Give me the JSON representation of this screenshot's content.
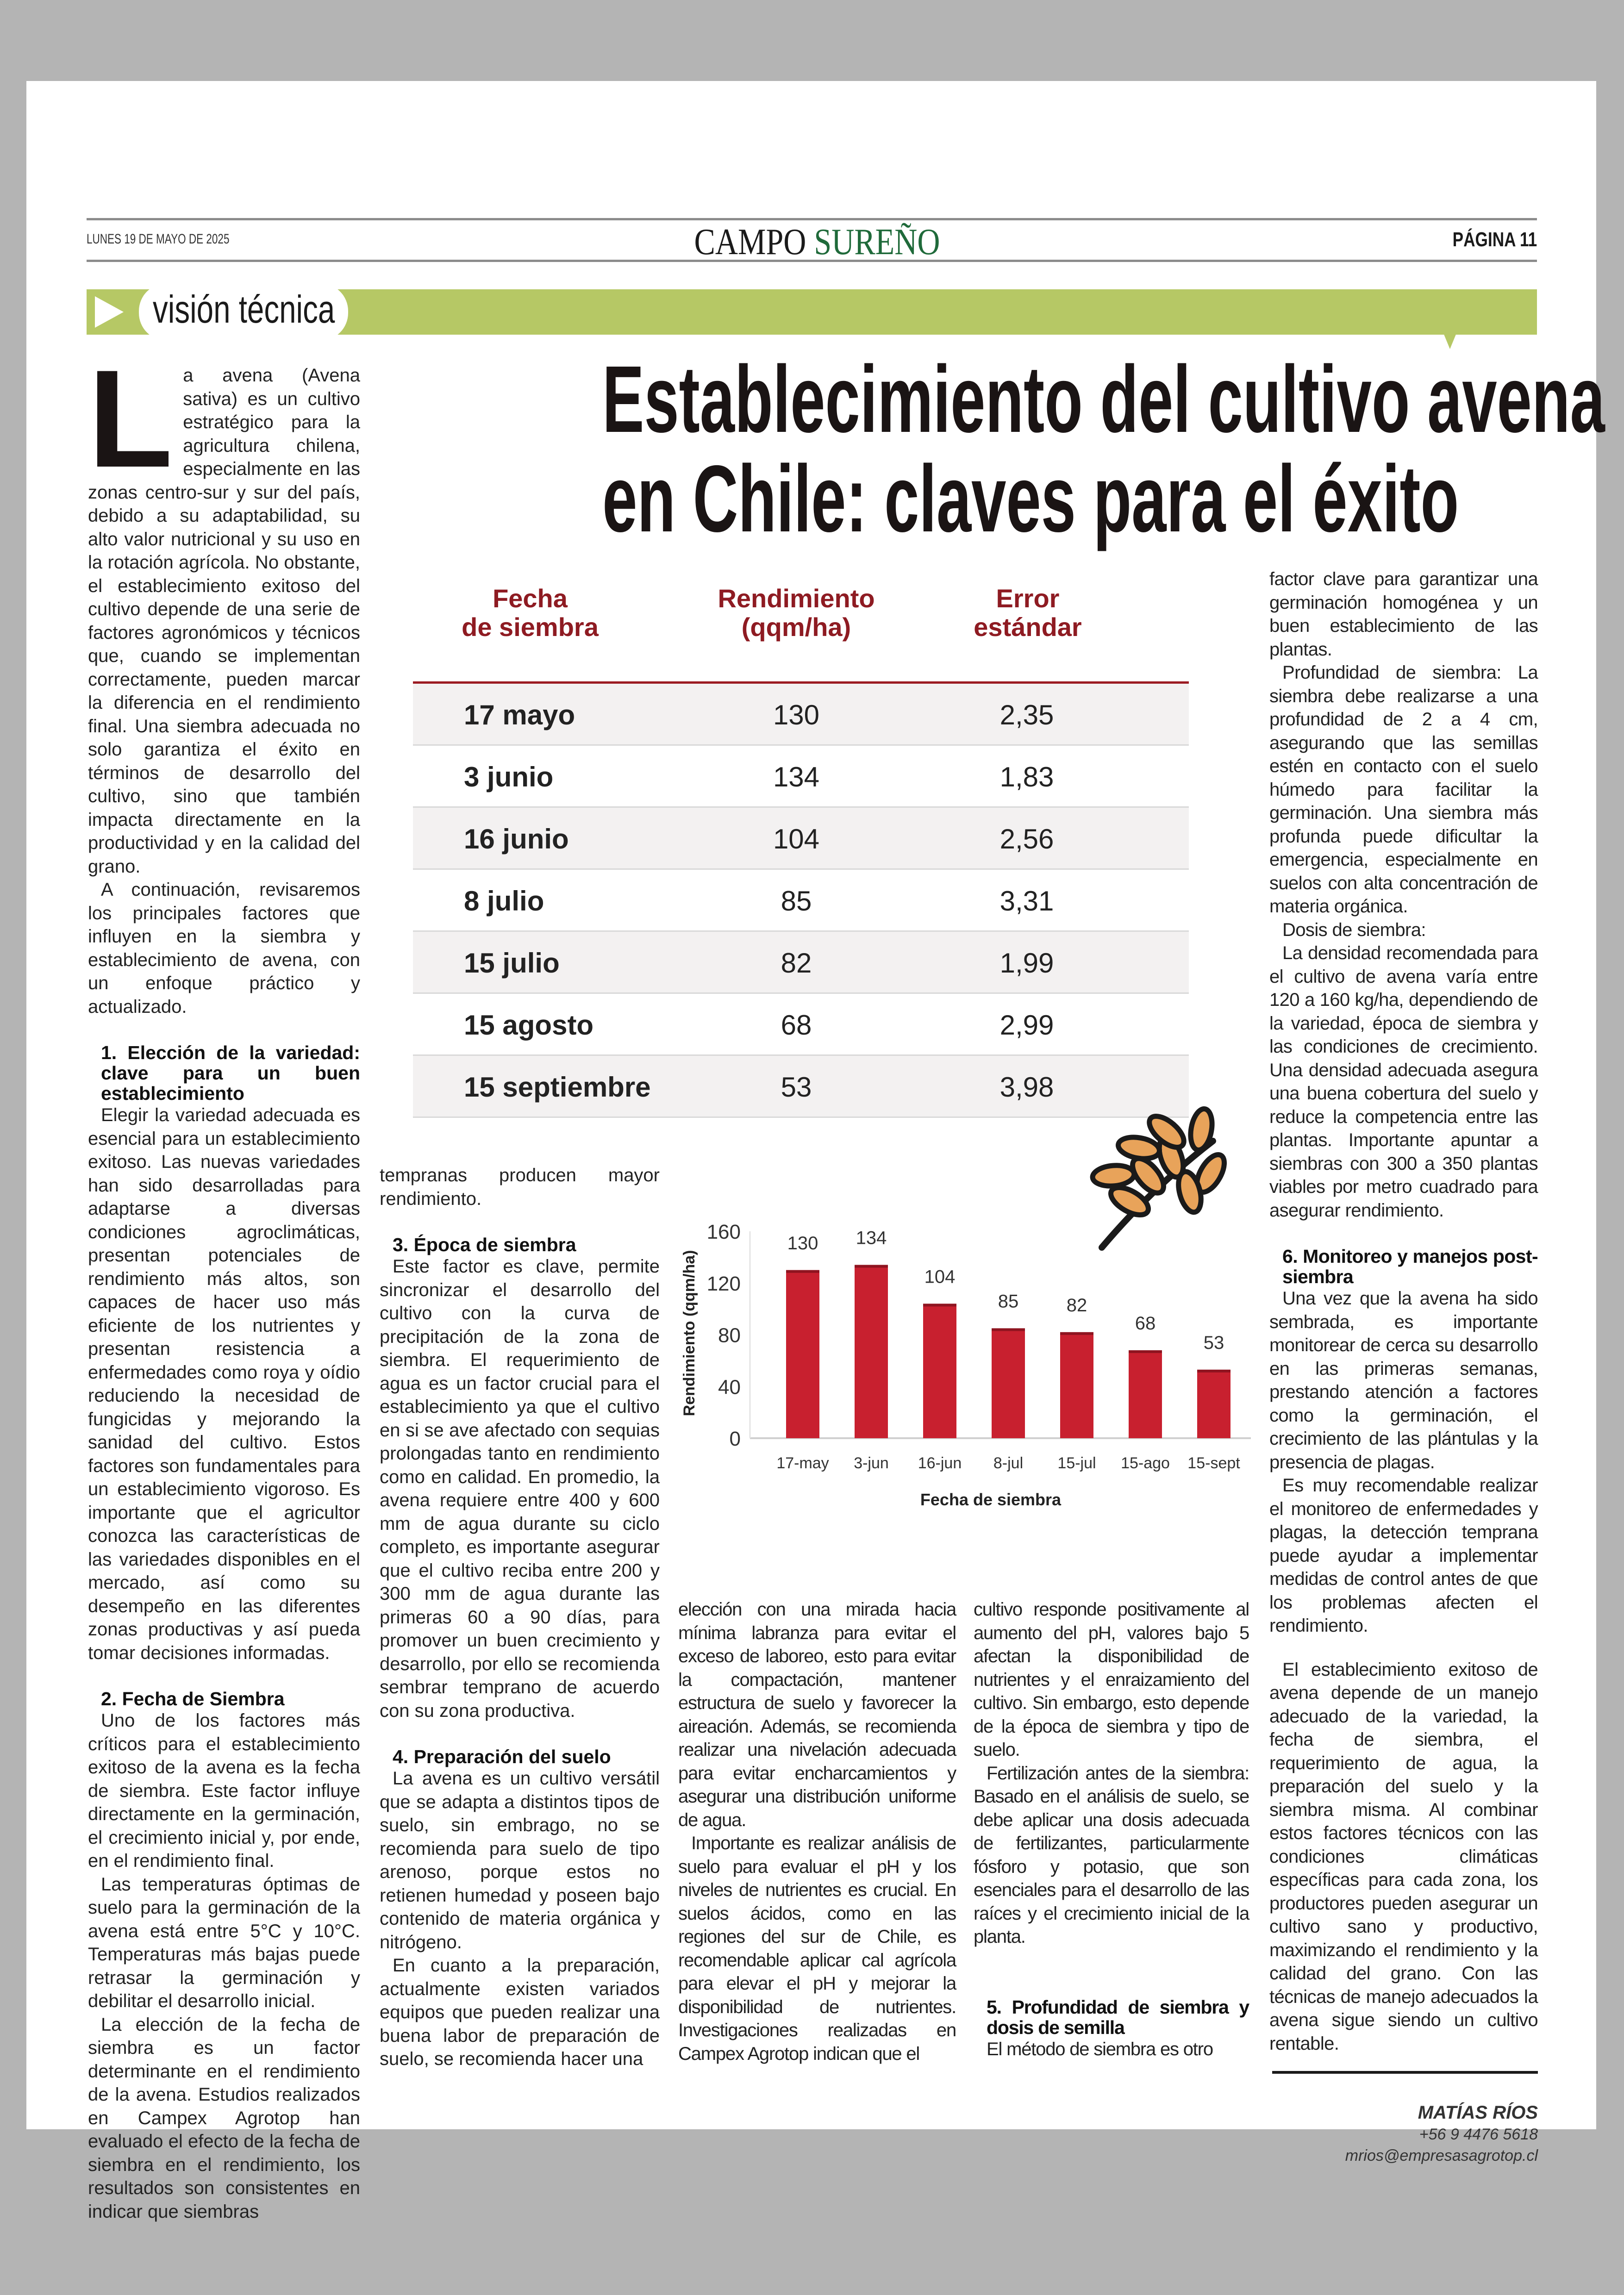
{
  "header": {
    "date": "LUNES 19 DE MAYO DE 2025",
    "masthead_a": "CAMPO",
    "masthead_b": "SUREÑO",
    "page": "PÁGINA 11",
    "section": "visión técnica"
  },
  "colors": {
    "band": "#b6c865",
    "brand_green": "#1f6a3a",
    "table_header": "#8e1b22",
    "bar": "#c8202f",
    "icon_fill": "#e8a35a"
  },
  "title": {
    "line1": "Establecimiento del cultivo avena",
    "line2": "en Chile: claves para el éxito"
  },
  "table": {
    "headers": [
      [
        "Fecha",
        "de siembra"
      ],
      [
        "Rendimiento",
        "(qqm/ha)"
      ],
      [
        "Error",
        "estándar"
      ]
    ],
    "rows": [
      [
        "17 mayo",
        "130",
        "2,35"
      ],
      [
        "3 junio",
        "134",
        "1,83"
      ],
      [
        "16 junio",
        "104",
        "2,56"
      ],
      [
        "8 julio",
        "85",
        "3,31"
      ],
      [
        "15 julio",
        "82",
        "1,99"
      ],
      [
        "15 agosto",
        "68",
        "2,99"
      ],
      [
        "15 septiembre",
        "53",
        "3,98"
      ]
    ]
  },
  "chart_data": {
    "type": "bar",
    "categories": [
      "17-may",
      "3-jun",
      "16-jun",
      "8-jul",
      "15-jul",
      "15-ago",
      "15-sept"
    ],
    "values": [
      130,
      134,
      104,
      85,
      82,
      68,
      53
    ],
    "xlabel": "Fecha de siembra",
    "ylabel": "Rendimiento (qqm/ha)",
    "ylim": [
      0,
      160
    ],
    "yticks": [
      0,
      40,
      80,
      120,
      160
    ],
    "data_labels": true,
    "grid": false,
    "icon": "wheat-icon"
  },
  "columns": [
    {
      "blocks": [
        {
          "type": "p",
          "dropcap": "L",
          "text": "a avena (Avena sativa) es un cultivo estratégico para la agricultura chilena, especialmente en las zonas centro-sur y sur del país, debido a su adaptabilidad, su alto valor nutricional y su uso en la rotación agrícola. No obstante, el establecimiento exitoso del cultivo depende de una serie de factores agronómicos y técnicos que, cuando se implementan correctamente, pueden marcar la diferencia en el rendimiento final. Una siembra adecuada no solo garantiza el éxito en términos de desarrollo del cultivo, sino que también impacta directamente en la productividad y en la calidad del grano."
        },
        {
          "type": "p",
          "text": "A continuación, revisaremos los principales factores que influyen en la siembra y establecimiento de avena, con un enfoque práctico y actualizado."
        },
        {
          "type": "h",
          "text": "1. Elección de la variedad: clave para un buen establecimiento"
        },
        {
          "type": "p",
          "text": "Elegir la variedad adecuada es esencial para un establecimiento exitoso. Las nuevas variedades han sido desarrolladas para adaptarse a diversas condiciones agroclimáticas, presentan potenciales de rendimiento más altos, son capaces de hacer uso más eficiente de los nutrientes y presentan resistencia a enfermedades como roya y oídio reduciendo la necesidad de fungicidas y mejorando la sanidad del cultivo. Estos factores son fundamentales para un establecimiento vigoroso. Es importante que el agricultor conozca las características de las variedades disponibles en el mercado, así como su desempeño en las diferentes zonas productivas y así pueda tomar decisiones informadas."
        },
        {
          "type": "h",
          "text": "2. Fecha de Siembra"
        },
        {
          "type": "p",
          "text": "Uno de los factores más críticos para el establecimiento exitoso de la avena es la fecha de siembra. Este factor influye directamente en la germinación, el crecimiento inicial y, por ende, en el rendimiento final."
        },
        {
          "type": "p",
          "text": "Las temperaturas óptimas de suelo para la germinación de la avena está entre 5°C y 10°C. Temperaturas más bajas puede retrasar la germinación y debilitar el desarrollo inicial."
        },
        {
          "type": "p",
          "text": "La elección de la fecha de siembra es un factor determinante en el rendimiento de la avena. Estudios realizados en Campex Agrotop han evaluado el efecto de la fecha de siembra en el rendimiento, los resultados son consistentes en indicar que siembras"
        }
      ]
    },
    {
      "blocks": [
        {
          "type": "p",
          "cont": true,
          "text": "tempranas producen mayor rendimiento."
        },
        {
          "type": "h",
          "text": "3. Época de siembra"
        },
        {
          "type": "p",
          "text": "Este factor es clave, permite sincronizar el desarrollo del cultivo con la curva de precipitación de la zona de siembra. El requerimiento de agua es un factor crucial para el establecimiento ya que el cultivo en si se ave afectado con sequias prolongadas tanto en rendimiento como en calidad. En promedio, la avena requiere entre 400 y 600 mm de agua durante su ciclo completo, es importante asegurar que el cultivo reciba entre 200 y 300 mm de agua durante las primeras 60 a 90 días, para promover un buen crecimiento y desarrollo, por ello se recomienda sembrar temprano de acuerdo con su zona productiva."
        },
        {
          "type": "h",
          "text": "4. Preparación del suelo"
        },
        {
          "type": "p",
          "text": "La avena es un cultivo versátil que se adapta a distintos tipos de suelo, sin embrago, no se recomienda para suelo de tipo arenoso, porque estos no retienen humedad y poseen bajo contenido de materia orgánica y nitrógeno."
        },
        {
          "type": "p",
          "text": "En cuanto a la preparación, actualmente existen variados equipos que pueden realizar una buena labor de preparación de suelo, se recomienda hacer una"
        }
      ]
    },
    {
      "blocks": [
        {
          "type": "p",
          "cont": true,
          "text": "elección con una mirada hacia mínima labranza para evitar el exceso de laboreo, esto para evitar la compactación, mantener estructura de suelo y favorecer la aireación. Además, se recomienda realizar una nivelación adecuada para evitar encharcamientos y asegurar una distribución uniforme de agua."
        },
        {
          "type": "p",
          "text": "Importante es realizar análisis de suelo para evaluar el pH y los niveles de nutrientes es crucial. En suelos ácidos, como en las regiones del sur de Chile, es recomendable aplicar cal agrícola para elevar el pH y mejorar la disponibilidad de nutrientes. Investigaciones realizadas en Campex Agrotop indican que el"
        }
      ]
    },
    {
      "blocks": [
        {
          "type": "p",
          "cont": true,
          "text": "cultivo responde positivamente al aumento del pH, valores bajo 5 afectan la disponibilidad de nutrientes y el enraizamiento del cultivo. Sin embargo, esto depende de la época de siembra y tipo de suelo."
        },
        {
          "type": "p",
          "text": "Fertilización antes de la siembra: Basado en el análisis de suelo, se debe aplicar una dosis adecuada de fertilizantes, particularmente fósforo y potasio, que son esenciales para el desarrollo de las raíces y el crecimiento inicial de la planta."
        },
        {
          "type": "h",
          "text": "5. Profundidad de siembra y dosis de semilla"
        },
        {
          "type": "p",
          "text": "El método de siembra es otro"
        }
      ]
    },
    {
      "blocks": [
        {
          "type": "p",
          "cont": true,
          "text": "factor clave para garantizar una germinación homogénea y un buen establecimiento de las plantas."
        },
        {
          "type": "p",
          "text": "Profundidad de siembra: La siembra debe realizarse a una profundidad de 2 a 4 cm, asegurando que las semillas estén en contacto con el suelo húmedo para facilitar la germinación. Una siembra más profunda puede dificultar la emergencia, especialmente en suelos con alta concentración de materia orgánica."
        },
        {
          "type": "p",
          "text": "Dosis de siembra:"
        },
        {
          "type": "p",
          "text": "La densidad recomendada para el cultivo de avena varía entre 120 a 160 kg/ha, dependiendo de la variedad, época de siembra y las condiciones de crecimiento. Una densidad adecuada asegura una buena cobertura del suelo y reduce la competencia entre las plantas. Importante apuntar a siembras con 300 a 350 plantas viables por metro cuadrado para asegurar rendimiento."
        },
        {
          "type": "h",
          "text": "6. Monitoreo y manejos post-siembra"
        },
        {
          "type": "p",
          "text": "Una vez que la avena ha sido sembrada, es importante monitorear de cerca su desarrollo en las primeras semanas, prestando atención a factores como la germinación, el crecimiento de las plántulas y la presencia de plagas."
        },
        {
          "type": "p",
          "text": "Es muy recomendable realizar el monitoreo de enfermedades y plagas, la detección temprana puede ayudar a implementar medidas de control antes de que los problemas afecten el rendimiento."
        },
        {
          "type": "p",
          "gap": true,
          "text": "El establecimiento exitoso de avena depende de un manejo adecuado de la variedad, la fecha de siembra, el requerimiento de agua, la preparación del suelo y la siembra misma. Al combinar estos factores técnicos con las condiciones climáticas específicas para cada zona, los productores pueden asegurar un cultivo sano y productivo, maximizando el rendimiento y la calidad del grano. Con las técnicas de manejo adecuados la avena sigue siendo un cultivo rentable."
        }
      ]
    }
  ],
  "byline": {
    "name": "MATÍAS RÍOS",
    "phone": "+56 9 4476 5618",
    "email": "mrios@empresasagrotop.cl"
  }
}
